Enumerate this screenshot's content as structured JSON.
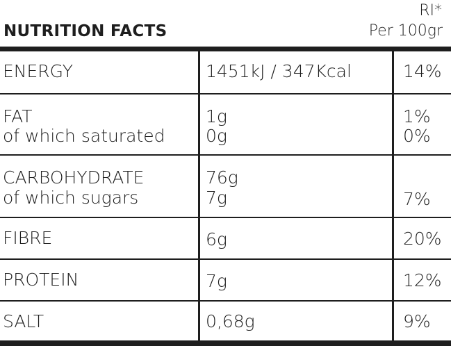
{
  "header": {
    "title": "NUTRITION FACTS",
    "ri": "RI*",
    "per": "Per 100gr"
  },
  "rows": [
    {
      "label": "ENERGY",
      "sublabel": "",
      "value": "1451kJ  /  347Kcal",
      "subvalue": "",
      "ri": "14%",
      "subri": ""
    },
    {
      "label": "FAT",
      "sublabel": "of which saturated",
      "value": "1g",
      "subvalue": "0g",
      "ri": "1%",
      "subri": "0%"
    },
    {
      "label": "CARBOHYDRATE",
      "sublabel": "of which sugars",
      "value": "76g",
      "subvalue": "7g",
      "ri": "",
      "subri": "7%"
    },
    {
      "label": "FIBRE",
      "sublabel": "",
      "value": "6g",
      "subvalue": "",
      "ri": "20%",
      "subri": ""
    },
    {
      "label": "PROTEIN",
      "sublabel": "",
      "value": "7g",
      "subvalue": "",
      "ri": "12%",
      "subri": ""
    },
    {
      "label": "SALT",
      "sublabel": "",
      "value": "0,68g",
      "subvalue": "",
      "ri": "9%",
      "subri": ""
    }
  ]
}
